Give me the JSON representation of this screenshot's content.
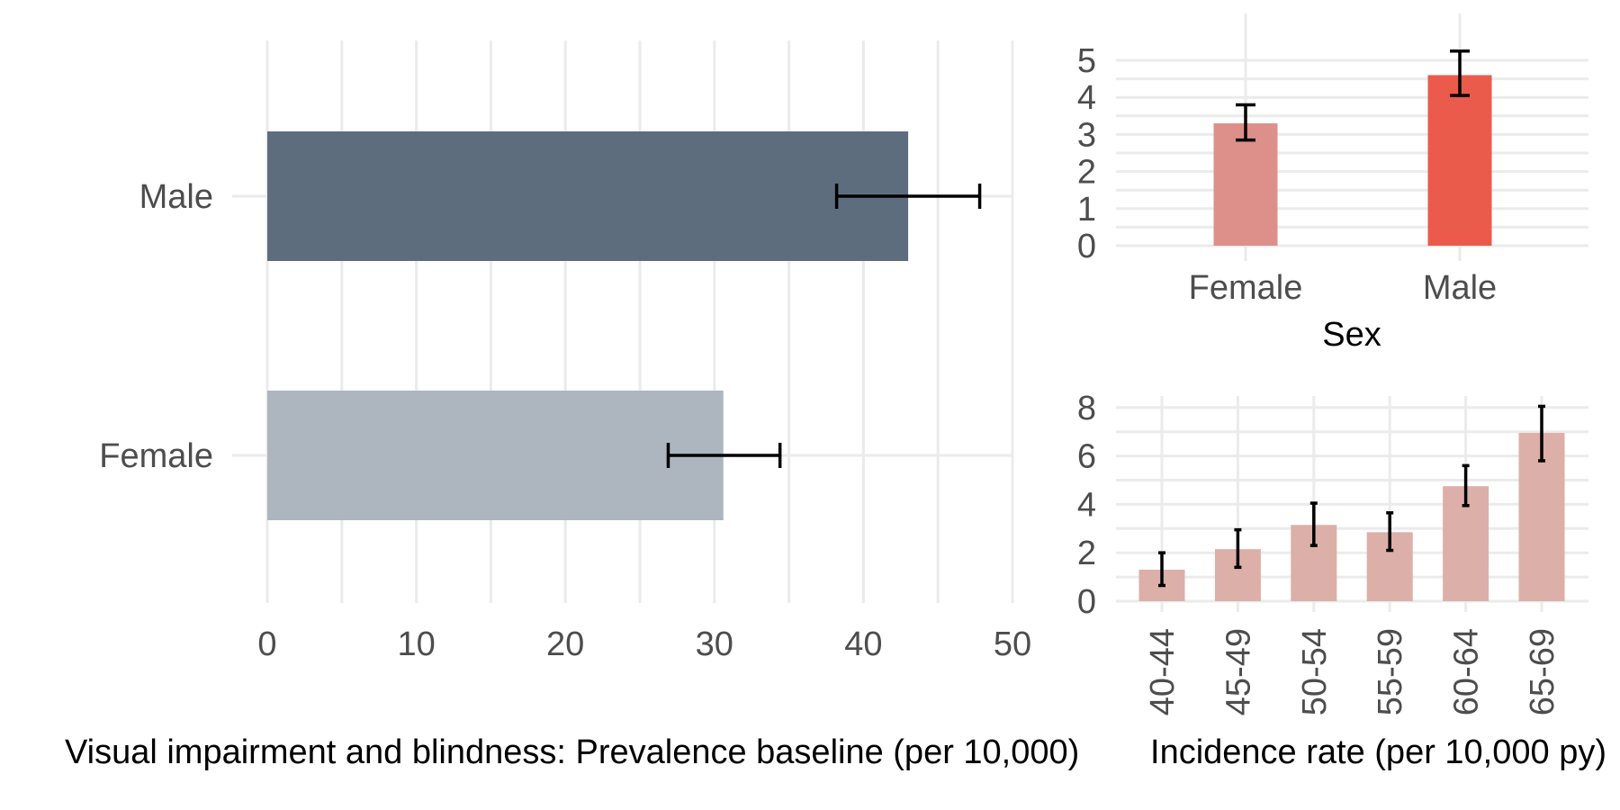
{
  "chart_data": [
    {
      "type": "bar",
      "orientation": "horizontal",
      "title": "",
      "xlabel": "Visual impairment and blindness: Prevalence baseline (per 10,000)",
      "ylabel": "",
      "categories": [
        "Male",
        "Female"
      ],
      "values": [
        43.0,
        30.6
      ],
      "error_low": [
        38.2,
        26.9
      ],
      "error_high": [
        47.8,
        34.4
      ],
      "colors": [
        "#5e6d7e",
        "#adb6bf"
      ],
      "xlim": [
        0,
        50
      ],
      "xticks": [
        "0",
        "10",
        "20",
        "30",
        "40",
        "50"
      ],
      "grid": true
    },
    {
      "type": "bar",
      "title": "",
      "xlabel": "Sex",
      "ylabel": "",
      "categories": [
        "Female",
        "Male"
      ],
      "values": [
        3.3,
        4.6
      ],
      "error_low": [
        2.85,
        4.05
      ],
      "error_high": [
        3.8,
        5.25
      ],
      "colors": [
        "#dd908a",
        "#eb5b4b"
      ],
      "ylim": [
        0,
        5.5
      ],
      "yticks": [
        "0",
        "1",
        "2",
        "3",
        "4",
        "5"
      ],
      "grid": true
    },
    {
      "type": "bar",
      "title": "",
      "xlabel": "Incidence rate (per 10,000 py)",
      "ylabel": "",
      "categories": [
        "40-44",
        "45-49",
        "50-54",
        "55-59",
        "60-64",
        "65-69"
      ],
      "values": [
        1.3,
        2.15,
        3.15,
        2.85,
        4.75,
        6.95
      ],
      "error_low": [
        0.65,
        1.4,
        2.3,
        2.1,
        3.95,
        5.8
      ],
      "error_high": [
        2.0,
        2.95,
        4.05,
        3.65,
        5.6,
        8.05
      ],
      "colors": [
        "#dcafa8"
      ],
      "ylim": [
        0,
        8.5
      ],
      "yticks": [
        "0",
        "2",
        "4",
        "6",
        "8"
      ],
      "grid": true
    }
  ]
}
